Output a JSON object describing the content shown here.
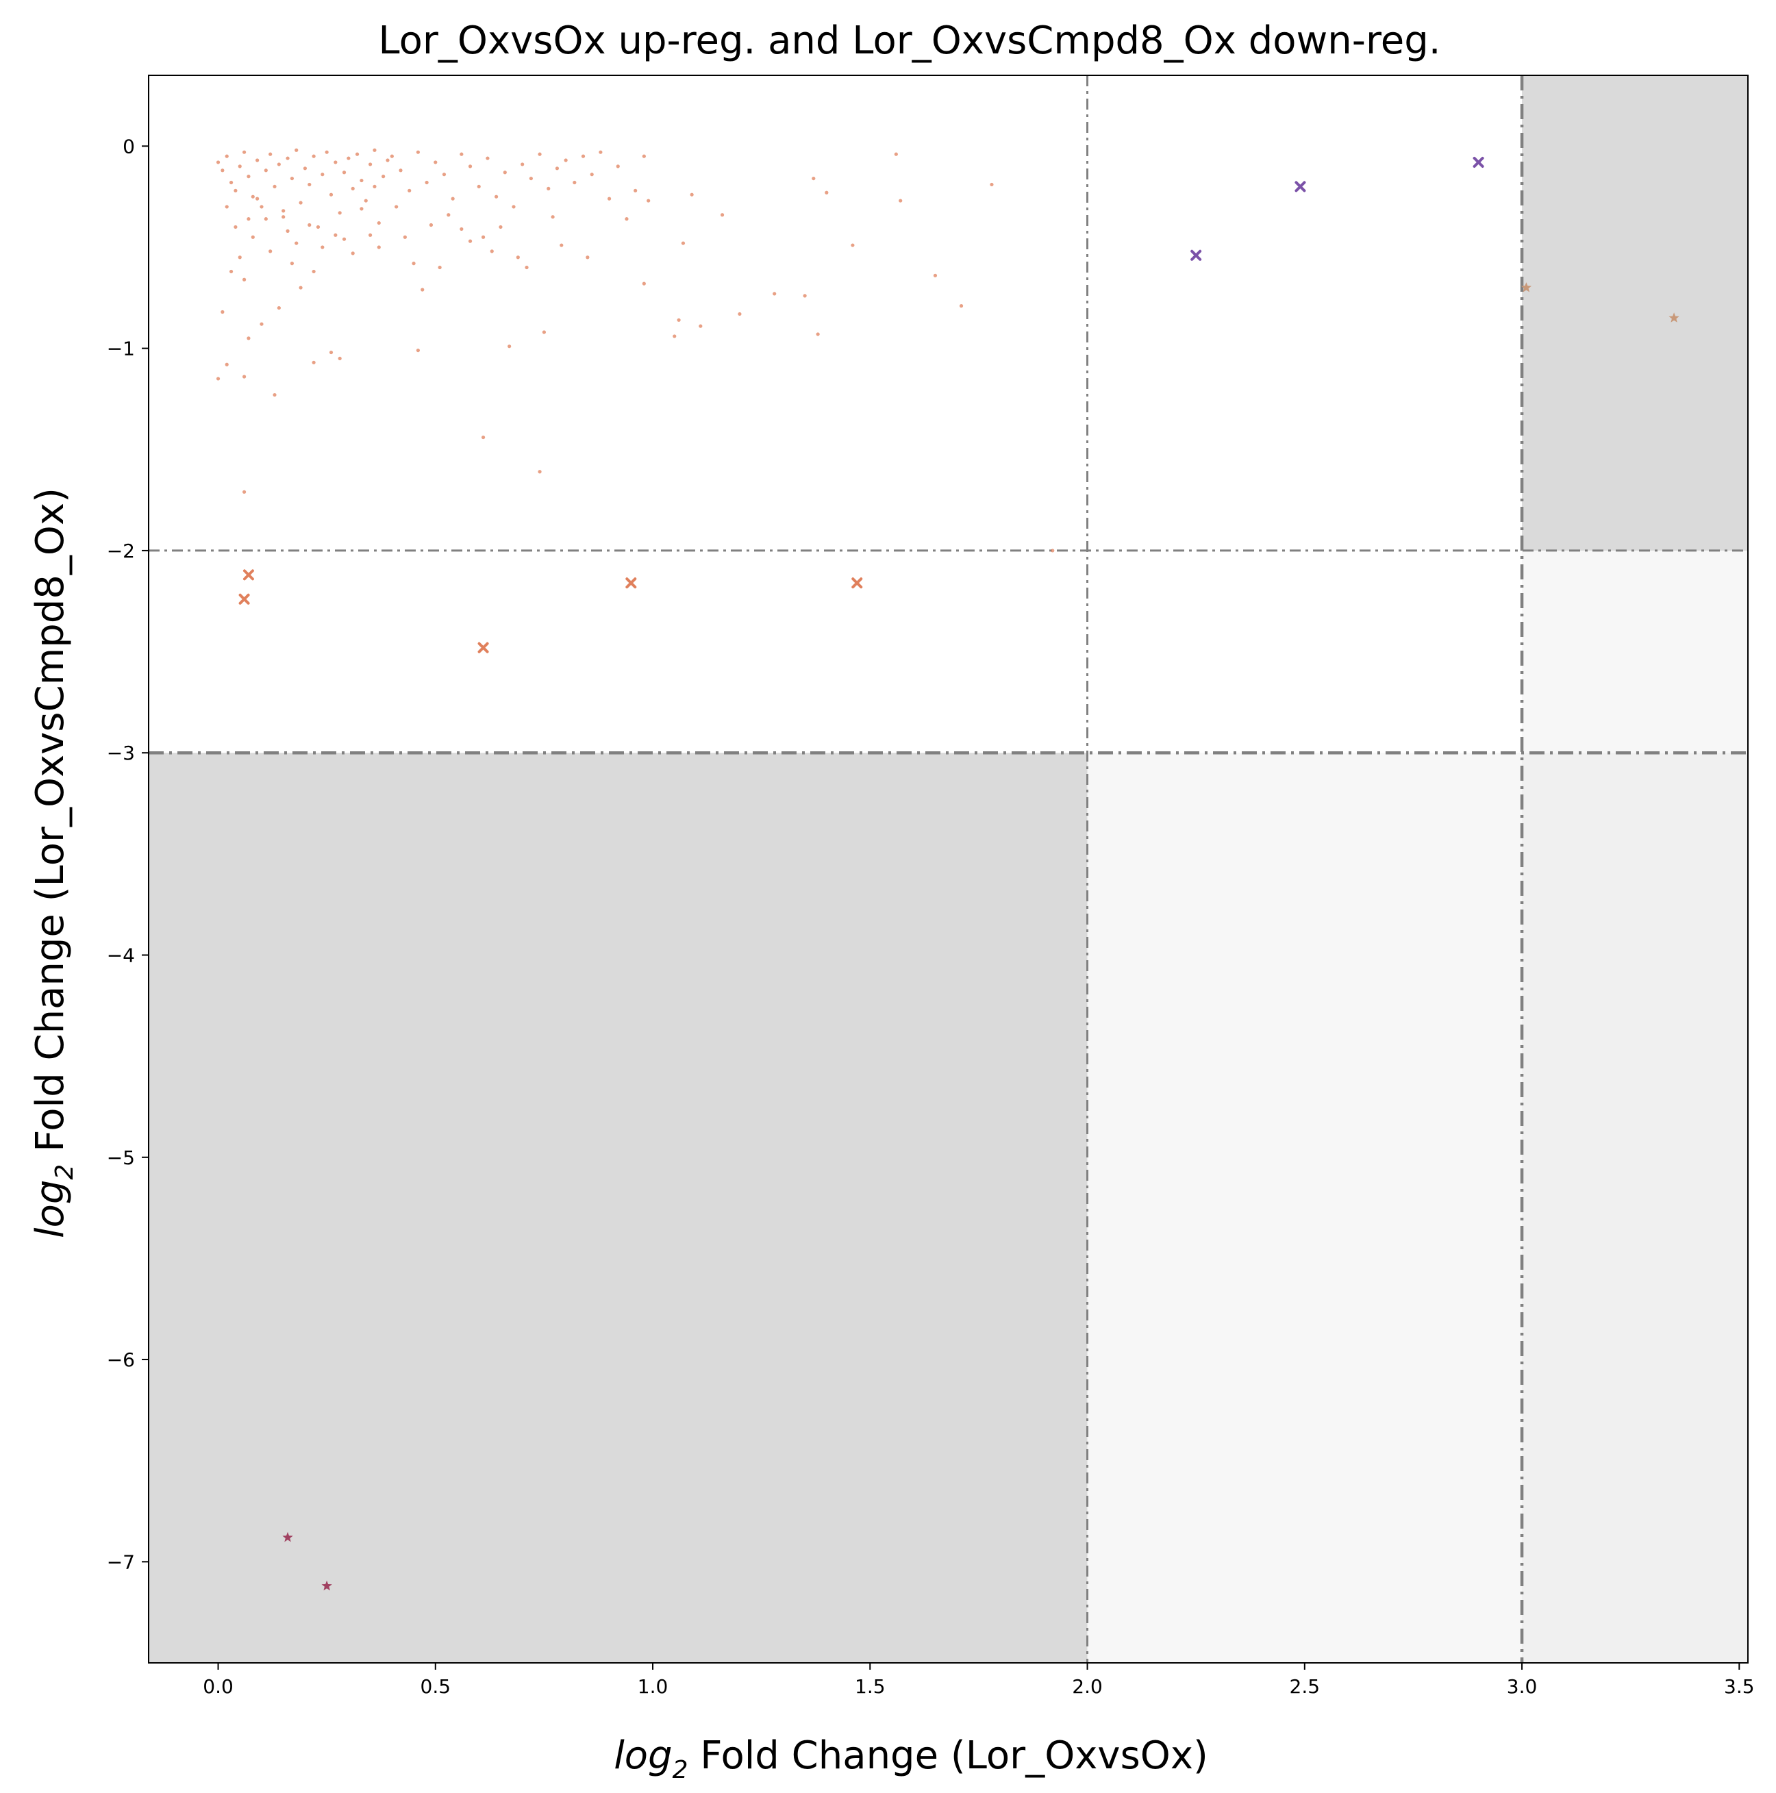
{
  "chart_data": {
    "type": "scatter",
    "title": "Lor_OxvsOx up-reg. and Lor_OxvsCmpd8_Ox down-reg.",
    "xlabel": {
      "pre": "log",
      "sub": "2",
      "post": " Fold Change (Lor_OxvsOx)"
    },
    "ylabel": {
      "pre": "log",
      "sub": "2",
      "post": " Fold Change (Lor_OxvsCmpd8_Ox)"
    },
    "xlim": [
      -0.16,
      3.52
    ],
    "ylim": [
      -7.5,
      0.35
    ],
    "x_ticks": [
      {
        "value": 0.0,
        "label": "0.0"
      },
      {
        "value": 0.5,
        "label": "0.5"
      },
      {
        "value": 1.0,
        "label": "1.0"
      },
      {
        "value": 1.5,
        "label": "1.5"
      },
      {
        "value": 2.0,
        "label": "2.0"
      },
      {
        "value": 2.5,
        "label": "2.5"
      },
      {
        "value": 3.0,
        "label": "3.0"
      },
      {
        "value": 3.5,
        "label": "3.5"
      }
    ],
    "y_ticks": [
      {
        "value": 0,
        "label": "0"
      },
      {
        "value": -1,
        "label": "−1"
      },
      {
        "value": -2,
        "label": "−2"
      },
      {
        "value": -3,
        "label": "−3"
      },
      {
        "value": -4,
        "label": "−4"
      },
      {
        "value": -5,
        "label": "−5"
      },
      {
        "value": -6,
        "label": "−6"
      },
      {
        "value": -7,
        "label": "−7"
      }
    ],
    "grid": false,
    "shaded_regions": [
      {
        "x": [
          -0.16,
          2.0
        ],
        "y": [
          -7.5,
          -3.0
        ],
        "color": "#dadada"
      },
      {
        "x": [
          2.0,
          3.0
        ],
        "y": [
          -7.5,
          -3.0
        ],
        "color": "#f7f7f7"
      },
      {
        "x": [
          3.0,
          3.52
        ],
        "y": [
          -7.5,
          -3.0
        ],
        "color": "#f0f0f0"
      },
      {
        "x": [
          3.0,
          3.52
        ],
        "y": [
          -3.0,
          -2.0
        ],
        "color": "#f7f7f7"
      },
      {
        "x": [
          3.0,
          3.52
        ],
        "y": [
          -2.0,
          0.35
        ],
        "color": "#dadada"
      }
    ],
    "threshold_lines": [
      {
        "orientation": "vertical",
        "value": 2.0,
        "weight": "thin"
      },
      {
        "orientation": "vertical",
        "value": 3.0,
        "weight": "thick"
      },
      {
        "orientation": "horizontal",
        "value": -2.0,
        "weight": "thin"
      },
      {
        "orientation": "horizontal",
        "value": -3.0,
        "weight": "thick"
      }
    ],
    "series": [
      {
        "marker": "dot",
        "color": "#e0805c",
        "points": [
          [
            0.0,
            -0.08
          ],
          [
            0.01,
            -0.12
          ],
          [
            0.02,
            -0.05
          ],
          [
            0.03,
            -0.18
          ],
          [
            0.04,
            -0.22
          ],
          [
            0.05,
            -0.1
          ],
          [
            0.06,
            -0.03
          ],
          [
            0.07,
            -0.15
          ],
          [
            0.08,
            -0.25
          ],
          [
            0.09,
            -0.07
          ],
          [
            0.1,
            -0.3
          ],
          [
            0.11,
            -0.12
          ],
          [
            0.12,
            -0.04
          ],
          [
            0.13,
            -0.2
          ],
          [
            0.14,
            -0.09
          ],
          [
            0.15,
            -0.35
          ],
          [
            0.16,
            -0.06
          ],
          [
            0.17,
            -0.16
          ],
          [
            0.18,
            -0.02
          ],
          [
            0.19,
            -0.28
          ],
          [
            0.2,
            -0.11
          ],
          [
            0.21,
            -0.19
          ],
          [
            0.22,
            -0.05
          ],
          [
            0.23,
            -0.4
          ],
          [
            0.24,
            -0.14
          ],
          [
            0.25,
            -0.03
          ],
          [
            0.26,
            -0.24
          ],
          [
            0.27,
            -0.08
          ],
          [
            0.28,
            -0.33
          ],
          [
            0.29,
            -0.13
          ],
          [
            0.3,
            -0.06
          ],
          [
            0.31,
            -0.21
          ],
          [
            0.32,
            -0.04
          ],
          [
            0.33,
            -0.17
          ],
          [
            0.34,
            -0.27
          ],
          [
            0.35,
            -0.09
          ],
          [
            0.36,
            -0.02
          ],
          [
            0.37,
            -0.38
          ],
          [
            0.38,
            -0.15
          ],
          [
            0.39,
            -0.07
          ],
          [
            0.02,
            -0.3
          ],
          [
            0.04,
            -0.4
          ],
          [
            0.05,
            -0.55
          ],
          [
            0.03,
            -0.62
          ],
          [
            0.06,
            -0.66
          ],
          [
            0.01,
            -0.82
          ],
          [
            0.07,
            -0.95
          ],
          [
            0.02,
            -1.08
          ],
          [
            0.0,
            -1.15
          ],
          [
            0.06,
            -1.14
          ],
          [
            0.13,
            -1.23
          ],
          [
            0.1,
            -0.88
          ],
          [
            0.14,
            -0.8
          ],
          [
            0.08,
            -0.45
          ],
          [
            0.12,
            -0.52
          ],
          [
            0.17,
            -0.58
          ],
          [
            0.19,
            -0.7
          ],
          [
            0.22,
            -0.62
          ],
          [
            0.24,
            -0.5
          ],
          [
            0.27,
            -0.44
          ],
          [
            0.26,
            -1.02
          ],
          [
            0.28,
            -1.05
          ],
          [
            0.22,
            -1.07
          ],
          [
            0.06,
            -1.71
          ],
          [
            0.11,
            -0.36
          ],
          [
            0.16,
            -0.42
          ],
          [
            0.18,
            -0.48
          ],
          [
            0.21,
            -0.39
          ],
          [
            0.29,
            -0.46
          ],
          [
            0.31,
            -0.53
          ],
          [
            0.4,
            -0.05
          ],
          [
            0.42,
            -0.12
          ],
          [
            0.44,
            -0.22
          ],
          [
            0.46,
            -0.03
          ],
          [
            0.48,
            -0.18
          ],
          [
            0.5,
            -0.08
          ],
          [
            0.52,
            -0.14
          ],
          [
            0.54,
            -0.26
          ],
          [
            0.56,
            -0.04
          ],
          [
            0.58,
            -0.1
          ],
          [
            0.41,
            -0.3
          ],
          [
            0.43,
            -0.45
          ],
          [
            0.45,
            -0.58
          ],
          [
            0.47,
            -0.71
          ],
          [
            0.49,
            -0.39
          ],
          [
            0.51,
            -0.6
          ],
          [
            0.53,
            -0.34
          ],
          [
            0.46,
            -1.01
          ],
          [
            0.37,
            -0.5
          ],
          [
            0.35,
            -0.44
          ],
          [
            0.6,
            -0.2
          ],
          [
            0.62,
            -0.06
          ],
          [
            0.64,
            -0.25
          ],
          [
            0.66,
            -0.13
          ],
          [
            0.68,
            -0.3
          ],
          [
            0.7,
            -0.09
          ],
          [
            0.72,
            -0.16
          ],
          [
            0.74,
            -0.04
          ],
          [
            0.76,
            -0.21
          ],
          [
            0.78,
            -0.11
          ],
          [
            0.61,
            -0.45
          ],
          [
            0.63,
            -0.52
          ],
          [
            0.65,
            -0.4
          ],
          [
            0.67,
            -0.99
          ],
          [
            0.69,
            -0.55
          ],
          [
            0.71,
            -0.6
          ],
          [
            0.75,
            -0.92
          ],
          [
            0.77,
            -0.35
          ],
          [
            0.74,
            -1.61
          ],
          [
            0.61,
            -1.44
          ],
          [
            0.8,
            -0.07
          ],
          [
            0.82,
            -0.18
          ],
          [
            0.84,
            -0.05
          ],
          [
            0.86,
            -0.14
          ],
          [
            0.88,
            -0.03
          ],
          [
            0.9,
            -0.26
          ],
          [
            0.92,
            -0.1
          ],
          [
            0.94,
            -0.36
          ],
          [
            0.96,
            -0.22
          ],
          [
            0.98,
            -0.05
          ],
          [
            0.99,
            -0.27
          ],
          [
            0.98,
            -0.68
          ],
          [
            1.05,
            -0.94
          ],
          [
            1.07,
            -0.48
          ],
          [
            1.09,
            -0.24
          ],
          [
            1.06,
            -0.86
          ],
          [
            1.11,
            -0.89
          ],
          [
            1.16,
            -0.34
          ],
          [
            1.2,
            -0.83
          ],
          [
            1.28,
            -0.73
          ],
          [
            1.35,
            -0.74
          ],
          [
            1.37,
            -0.16
          ],
          [
            1.38,
            -0.93
          ],
          [
            1.4,
            -0.23
          ],
          [
            1.46,
            -0.49
          ],
          [
            1.56,
            -0.04
          ],
          [
            1.57,
            -0.27
          ],
          [
            1.65,
            -0.64
          ],
          [
            1.71,
            -0.79
          ],
          [
            1.78,
            -0.19
          ],
          [
            1.92,
            -2.0
          ],
          [
            0.85,
            -0.55
          ],
          [
            0.79,
            -0.49
          ],
          [
            0.56,
            -0.41
          ],
          [
            0.58,
            -0.47
          ],
          [
            0.33,
            -0.31
          ],
          [
            0.36,
            -0.2
          ],
          [
            0.15,
            -0.32
          ],
          [
            0.09,
            -0.26
          ],
          [
            0.07,
            -0.36
          ]
        ]
      },
      {
        "marker": "x",
        "color": "#e0805c",
        "points": [
          [
            0.06,
            -2.24
          ],
          [
            0.07,
            -2.12
          ],
          [
            0.61,
            -2.48
          ],
          [
            0.95,
            -2.16
          ],
          [
            1.47,
            -2.16
          ]
        ]
      },
      {
        "marker": "x",
        "color": "#7b52a8",
        "points": [
          [
            2.25,
            -0.54
          ],
          [
            2.49,
            -0.2
          ],
          [
            2.9,
            -0.08
          ]
        ]
      },
      {
        "marker": "star",
        "color": "#c89878",
        "points": [
          [
            3.01,
            -0.7
          ],
          [
            3.35,
            -0.85
          ]
        ]
      },
      {
        "marker": "star",
        "color": "#a04060",
        "points": [
          [
            0.16,
            -6.88
          ],
          [
            0.25,
            -7.12
          ]
        ]
      }
    ]
  }
}
